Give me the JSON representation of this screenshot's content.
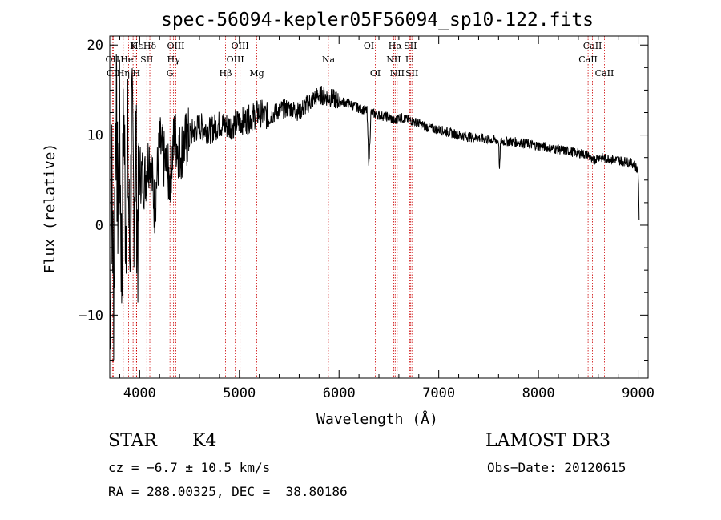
{
  "chart_data": {
    "type": "line",
    "title": "spec-56094-kepler05F56094_sp10-122.fits",
    "xlabel": "Wavelength (Å)",
    "ylabel": "Flux (relative)",
    "xlim": [
      3700,
      9100
    ],
    "ylim": [
      -17,
      21
    ],
    "xticks": [
      4000,
      5000,
      6000,
      7000,
      8000,
      9000
    ],
    "yticks": [
      -10,
      0,
      10,
      20
    ],
    "series": [
      {
        "name": "flux",
        "x": [
          3700,
          3720,
          3740,
          3760,
          3780,
          3800,
          3820,
          3840,
          3860,
          3880,
          3900,
          3920,
          3940,
          3960,
          3980,
          4000,
          4050,
          4100,
          4150,
          4200,
          4250,
          4300,
          4350,
          4400,
          4450,
          4500,
          4600,
          4700,
          4800,
          4900,
          5000,
          5100,
          5200,
          5300,
          5400,
          5500,
          5600,
          5700,
          5800,
          5900,
          6000,
          6100,
          6200,
          6280,
          6300,
          6320,
          6400,
          6500,
          6560,
          6600,
          6700,
          6800,
          6900,
          7000,
          7100,
          7200,
          7300,
          7400,
          7500,
          7600,
          7610,
          7620,
          7700,
          7800,
          7900,
          8000,
          8100,
          8200,
          8300,
          8400,
          8500,
          8540,
          8600,
          8660,
          8700,
          8800,
          8900,
          8960,
          9000,
          9010
        ],
        "y": [
          -12,
          5,
          -8,
          15,
          2,
          10,
          -6,
          13,
          0,
          8,
          -4,
          11,
          3,
          9,
          -2,
          6,
          5,
          8,
          2,
          9,
          7,
          5,
          10,
          8,
          9,
          10,
          11,
          10.5,
          11.2,
          11,
          11.5,
          11.8,
          12.5,
          12,
          12.8,
          13,
          12.6,
          13.6,
          14.5,
          14.2,
          13.8,
          13.5,
          13,
          12.7,
          6.5,
          12.5,
          12.2,
          12,
          11.5,
          12,
          11.7,
          11.3,
          10.8,
          10.6,
          10.3,
          10,
          9.8,
          9.7,
          9.5,
          9.4,
          5.8,
          9.3,
          9.3,
          9.2,
          9,
          8.8,
          8.6,
          8.4,
          8.2,
          8,
          7.8,
          7,
          7.6,
          7.4,
          7.4,
          7.2,
          7,
          6.8,
          6,
          1
        ]
      }
    ],
    "lines": [
      {
        "label": "Hε",
        "wavelength": 3970,
        "row": 1
      },
      {
        "label": "OII",
        "wavelength": 3727,
        "row": 2
      },
      {
        "label": "CII",
        "wavelength": 3737,
        "row": 3
      },
      {
        "label": "Hη",
        "wavelength": 3835,
        "row": 3
      },
      {
        "label": "HeI",
        "wavelength": 3889,
        "row": 2
      },
      {
        "label": "K",
        "wavelength": 3934,
        "row": 1
      },
      {
        "label": "H",
        "wavelength": 3968,
        "row": 3
      },
      {
        "label": "SII",
        "wavelength": 4072,
        "row": 2
      },
      {
        "label": "Hδ",
        "wavelength": 4102,
        "row": 1
      },
      {
        "label": "G",
        "wavelength": 4304,
        "row": 3
      },
      {
        "label": "Hγ",
        "wavelength": 4340,
        "row": 2
      },
      {
        "label": "OIII",
        "wavelength": 4363,
        "row": 1
      },
      {
        "label": "Hβ",
        "wavelength": 4861,
        "row": 3
      },
      {
        "label": "OIII",
        "wavelength": 4959,
        "row": 2
      },
      {
        "label": "OIII",
        "wavelength": 5007,
        "row": 1
      },
      {
        "label": "Mg",
        "wavelength": 5175,
        "row": 3
      },
      {
        "label": "Na",
        "wavelength": 5893,
        "row": 2
      },
      {
        "label": "OI",
        "wavelength": 6300,
        "row": 1
      },
      {
        "label": "OI",
        "wavelength": 6364,
        "row": 3
      },
      {
        "label": "NII",
        "wavelength": 6548,
        "row": 2
      },
      {
        "label": "Hα",
        "wavelength": 6563,
        "row": 1
      },
      {
        "label": "NII",
        "wavelength": 6583,
        "row": 3
      },
      {
        "label": "Li",
        "wavelength": 6708,
        "row": 2
      },
      {
        "label": "SII",
        "wavelength": 6716,
        "row": 1
      },
      {
        "label": "SII",
        "wavelength": 6731,
        "row": 3
      },
      {
        "label": "CaII",
        "wavelength": 8498,
        "row": 2
      },
      {
        "label": "CaII",
        "wavelength": 8542,
        "row": 1
      },
      {
        "label": "CaII",
        "wavelength": 8662,
        "row": 3
      }
    ]
  },
  "info": {
    "object_class": "STAR",
    "subclass": "K4",
    "survey": "LAMOST DR3",
    "cz": "cz = −6.7 ± 10.5 km/s",
    "obs_date": "Obs−Date: 20120615",
    "coords": "RA = 288.00325, DEC =  38.80186"
  },
  "colors": {
    "spectrum": "#000000",
    "line_marker": "#cc0000",
    "axes": "#000000"
  }
}
